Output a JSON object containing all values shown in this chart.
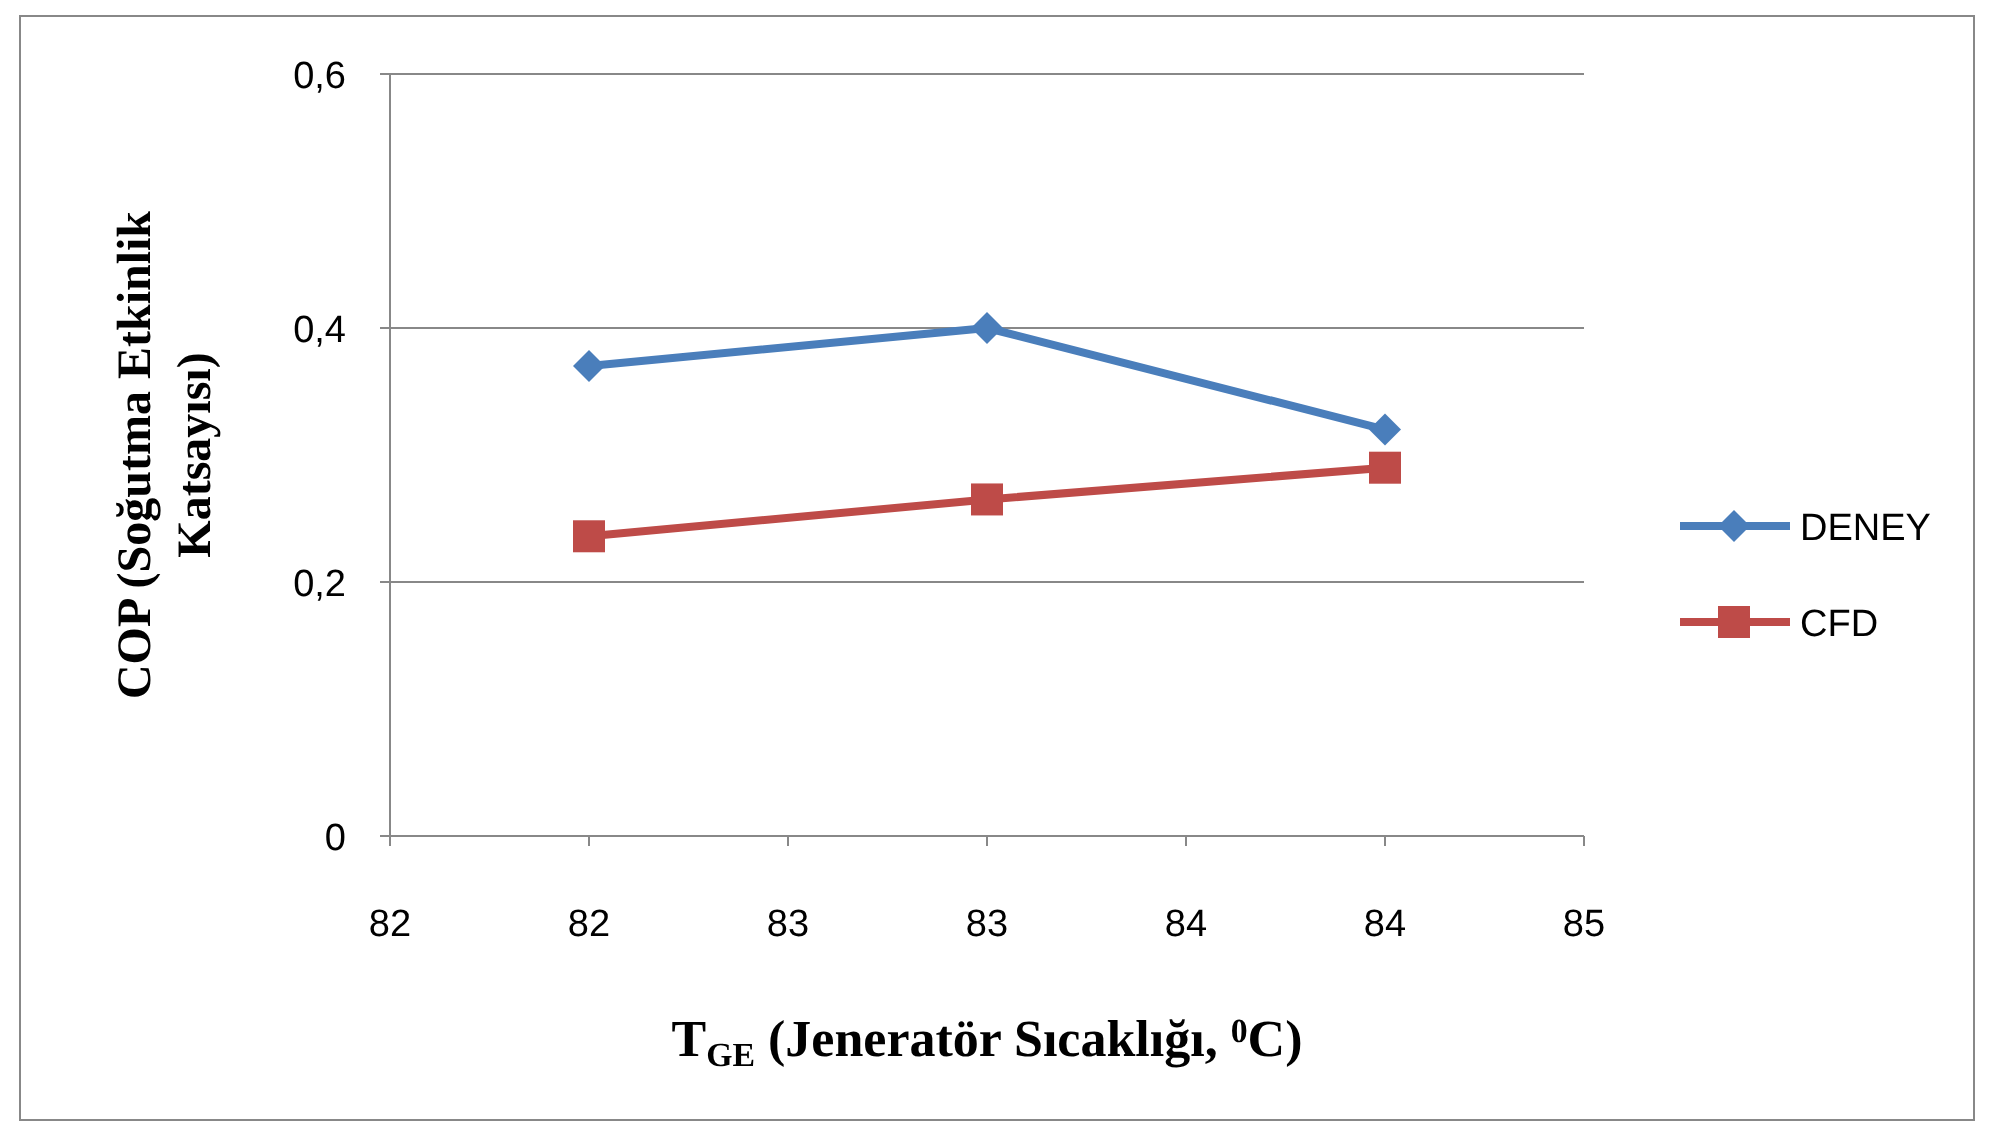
{
  "chart_data": {
    "type": "line",
    "xlabel": "T$_{GE}$ (Jeneratör Sıcaklığı, $^{0}$C)",
    "ylabel": "COP (Soğutma Etkinlik Katsayısı)",
    "x": [
      82,
      83,
      84
    ],
    "series": [
      {
        "name": "DENEY",
        "color": "#4a7ebb",
        "marker": "diamond",
        "values": [
          0.37,
          0.4,
          0.32
        ]
      },
      {
        "name": "CFD",
        "color": "#be4b48",
        "marker": "square",
        "values": [
          0.236,
          0.265,
          0.29
        ]
      }
    ],
    "xlim": [
      81.5,
      84.5
    ],
    "xticks": [
      {
        "value": 81.5,
        "label": "82"
      },
      {
        "value": 82,
        "label": "82"
      },
      {
        "value": 82.5,
        "label": "83"
      },
      {
        "value": 83,
        "label": "83"
      },
      {
        "value": 83.5,
        "label": "84"
      },
      {
        "value": 84,
        "label": "84"
      },
      {
        "value": 84.5,
        "label": "85"
      }
    ],
    "ylim": [
      0,
      0.6
    ],
    "yticks": [
      0,
      {
        "value": 0.2,
        "label": "0,2"
      },
      {
        "value": 0.4,
        "label": "0,4"
      },
      {
        "value": 0.6,
        "label": "0,6"
      }
    ],
    "grid": "y",
    "legend": "right"
  }
}
